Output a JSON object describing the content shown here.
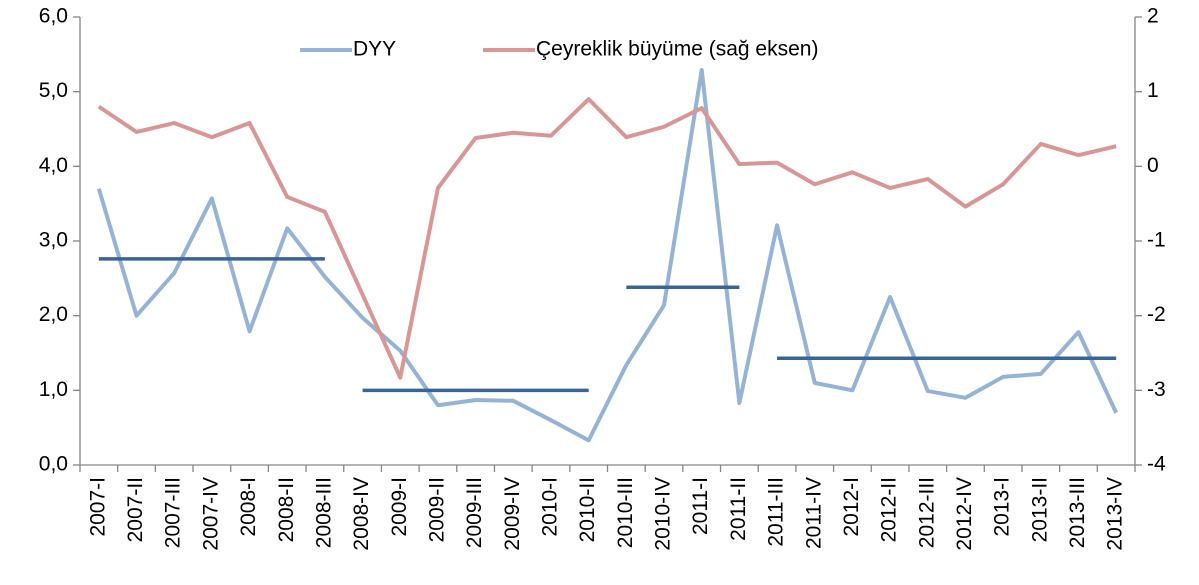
{
  "chart_data": {
    "type": "line",
    "categories": [
      "2007-I",
      "2007-II",
      "2007-III",
      "2007-IV",
      "2008-I",
      "2008-II",
      "2008-III",
      "2008-IV",
      "2009-I",
      "2009-II",
      "2009-III",
      "2009-IV",
      "2010-I",
      "2010-II",
      "2010-III",
      "2010-IV",
      "2011-I",
      "2011-II",
      "2011-III",
      "2011-IV",
      "2012-I",
      "2012-II",
      "2012-III",
      "2012-IV",
      "2013-I",
      "2013-II",
      "2013-III",
      "2013-IV"
    ],
    "series": [
      {
        "name": "DYY",
        "color": "#95b3d7",
        "values": [
          3.7,
          2.0,
          2.57,
          3.57,
          1.79,
          3.17,
          2.52,
          1.97,
          1.53,
          0.8,
          0.87,
          0.86,
          0.6,
          0.33,
          1.34,
          2.14,
          5.29,
          0.83,
          3.21,
          1.1,
          1.0,
          2.25,
          0.99,
          0.9,
          1.18,
          1.22,
          1.78,
          0.7
        ]
      },
      {
        "name": "Çeyreklik büyüme (sağ eksen)",
        "color": "#d99694",
        "axis": "y2",
        "values": [
          0.8,
          0.46,
          0.58,
          0.39,
          0.58,
          -0.41,
          -0.61,
          -1.72,
          -2.83,
          -0.29,
          0.38,
          0.45,
          0.41,
          0.9,
          0.39,
          0.53,
          0.78,
          0.03,
          0.05,
          -0.24,
          -0.08,
          -0.29,
          -0.17,
          -0.54,
          -0.24,
          0.3,
          0.15,
          0.27
        ]
      },
      {
        "color": "#3a6499",
        "values": [
          2.76,
          2.76,
          2.76,
          2.76,
          2.76,
          2.76,
          2.76,
          1.0,
          1.0,
          1.0,
          1.0,
          1.0,
          1.0,
          1.0,
          2.38,
          2.38,
          2.38,
          2.38,
          1.43,
          1.43,
          1.43,
          1.43,
          1.43,
          1.43,
          1.43,
          1.43,
          1.43,
          1.43
        ]
      }
    ],
    "ylim": [
      0,
      6
    ],
    "yticks": [
      {
        "value": 0,
        "label": "0,0"
      },
      {
        "value": 1,
        "label": "1,0"
      },
      {
        "value": 2,
        "label": "2,0"
      },
      {
        "value": 3,
        "label": "3,0"
      },
      {
        "value": 4,
        "label": "4,0"
      },
      {
        "value": 5,
        "label": "5,0"
      },
      {
        "value": 6,
        "label": "6,0"
      }
    ],
    "y2lim": [
      -4,
      2
    ],
    "y2ticks": [
      -4,
      -3,
      -2,
      -1,
      0,
      1,
      2
    ],
    "legend": "top"
  }
}
